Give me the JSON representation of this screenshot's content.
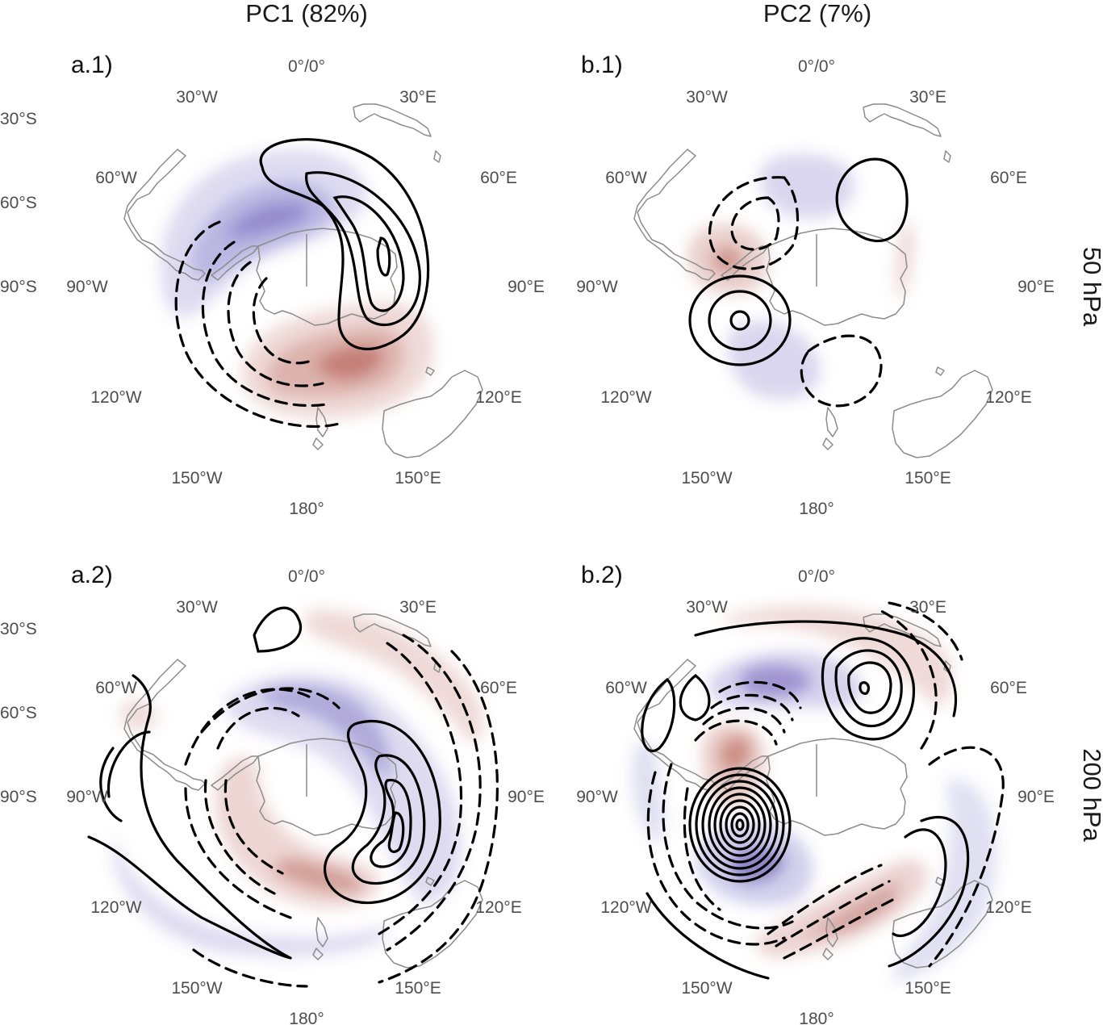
{
  "figure": {
    "column_titles": [
      "PC1 (82%)",
      "PC2 (7%)"
    ],
    "row_titles": [
      "50 hPa",
      "200 hPa"
    ]
  },
  "colors": {
    "positive_fill": "#b5554a",
    "negative_fill": "#6a5fbf",
    "contour": "#000000",
    "coastline": "#8c8c8c",
    "label_text": "#4d4d4d"
  },
  "chart_data": [
    {
      "type": "polar stereographic map",
      "panel": "a.1)",
      "column": "PC1 (82%)",
      "level": "50 hPa",
      "longitude_labels": [
        "0°/0°",
        "30°E",
        "60°E",
        "90°E",
        "120°E",
        "150°E",
        "180°",
        "150°W",
        "120°W",
        "90°W",
        "60°W",
        "30°W"
      ],
      "latitude_labels": [
        "30°S",
        "60°S",
        "90°S"
      ],
      "features": [
        {
          "sign": "positive",
          "kind": "contours",
          "count": 4,
          "center": "45°E–70°E, near the pole"
        },
        {
          "sign": "negative",
          "kind": "contours",
          "count": 4,
          "center": "90°W–150°W"
        },
        {
          "sign": "positive",
          "kind": "shading",
          "levels": 4,
          "center": "150°E–180°"
        },
        {
          "sign": "negative",
          "kind": "shading",
          "levels": 4,
          "center": "30°W–60°W"
        }
      ]
    },
    {
      "type": "polar stereographic map",
      "panel": "b.1)",
      "column": "PC2 (7%)",
      "level": "50 hPa",
      "longitude_labels": [
        "0°/0°",
        "30°E",
        "60°E",
        "90°E",
        "120°E",
        "150°E",
        "180°",
        "150°W",
        "120°W",
        "90°W",
        "60°W",
        "30°W"
      ],
      "latitude_labels": [],
      "features": [
        {
          "sign": "positive",
          "kind": "contours",
          "count": 3,
          "center": "100°W–120°W"
        },
        {
          "sign": "positive",
          "kind": "contours",
          "count": 1,
          "center": "30°E–45°E"
        },
        {
          "sign": "negative",
          "kind": "contours",
          "count": 2,
          "center": "30°W–60°W"
        },
        {
          "sign": "negative",
          "kind": "contours",
          "count": 1,
          "center": "150°E–180°"
        },
        {
          "sign": "positive",
          "kind": "shading",
          "levels": 3,
          "center": "60°W–90°W"
        },
        {
          "sign": "negative",
          "kind": "shading",
          "levels": 2,
          "center": "0°–30°W"
        },
        {
          "sign": "negative",
          "kind": "shading",
          "levels": 2,
          "center": "150°W–180°"
        }
      ]
    },
    {
      "type": "polar stereographic map",
      "panel": "a.2)",
      "column": "PC1 (82%)",
      "level": "200 hPa",
      "longitude_labels": [
        "0°/0°",
        "30°E",
        "60°E",
        "90°E",
        "120°E",
        "150°E",
        "180°",
        "150°W",
        "120°W",
        "90°W",
        "60°W",
        "30°W"
      ],
      "latitude_labels": [
        "30°S",
        "60°S",
        "90°S"
      ],
      "features": [
        {
          "sign": "positive",
          "kind": "contours",
          "count": 5,
          "center": "100°E–120°E"
        },
        {
          "sign": "negative",
          "kind": "contours",
          "count": 5,
          "center": "0°–90°W, inner ring"
        },
        {
          "sign": "positive",
          "kind": "shading",
          "levels": 4,
          "center": "150°E–150°W"
        },
        {
          "sign": "negative",
          "kind": "shading",
          "levels": 3,
          "center": "0°–60°E"
        }
      ]
    },
    {
      "type": "polar stereographic map",
      "panel": "b.2)",
      "column": "PC2 (7%)",
      "level": "200 hPa",
      "longitude_labels": [
        "0°/0°",
        "30°E",
        "60°E",
        "90°E",
        "120°E",
        "150°E",
        "180°",
        "150°W",
        "120°W",
        "90°W",
        "60°W",
        "30°W"
      ],
      "latitude_labels": [],
      "features": [
        {
          "sign": "positive",
          "kind": "contours",
          "count": 9,
          "center": "100°W–120°W"
        },
        {
          "sign": "positive",
          "kind": "contours",
          "count": 4,
          "center": "30°E–45°E"
        },
        {
          "sign": "negative",
          "kind": "contours",
          "count": 5,
          "center": "0°–30°W"
        },
        {
          "sign": "negative",
          "kind": "contours",
          "count": 4,
          "center": "150°E–180°"
        },
        {
          "sign": "positive",
          "kind": "shading",
          "levels": 4,
          "center": "60°W–90°W"
        },
        {
          "sign": "negative",
          "kind": "shading",
          "levels": 4,
          "center": "120°W–150°W"
        }
      ]
    }
  ]
}
